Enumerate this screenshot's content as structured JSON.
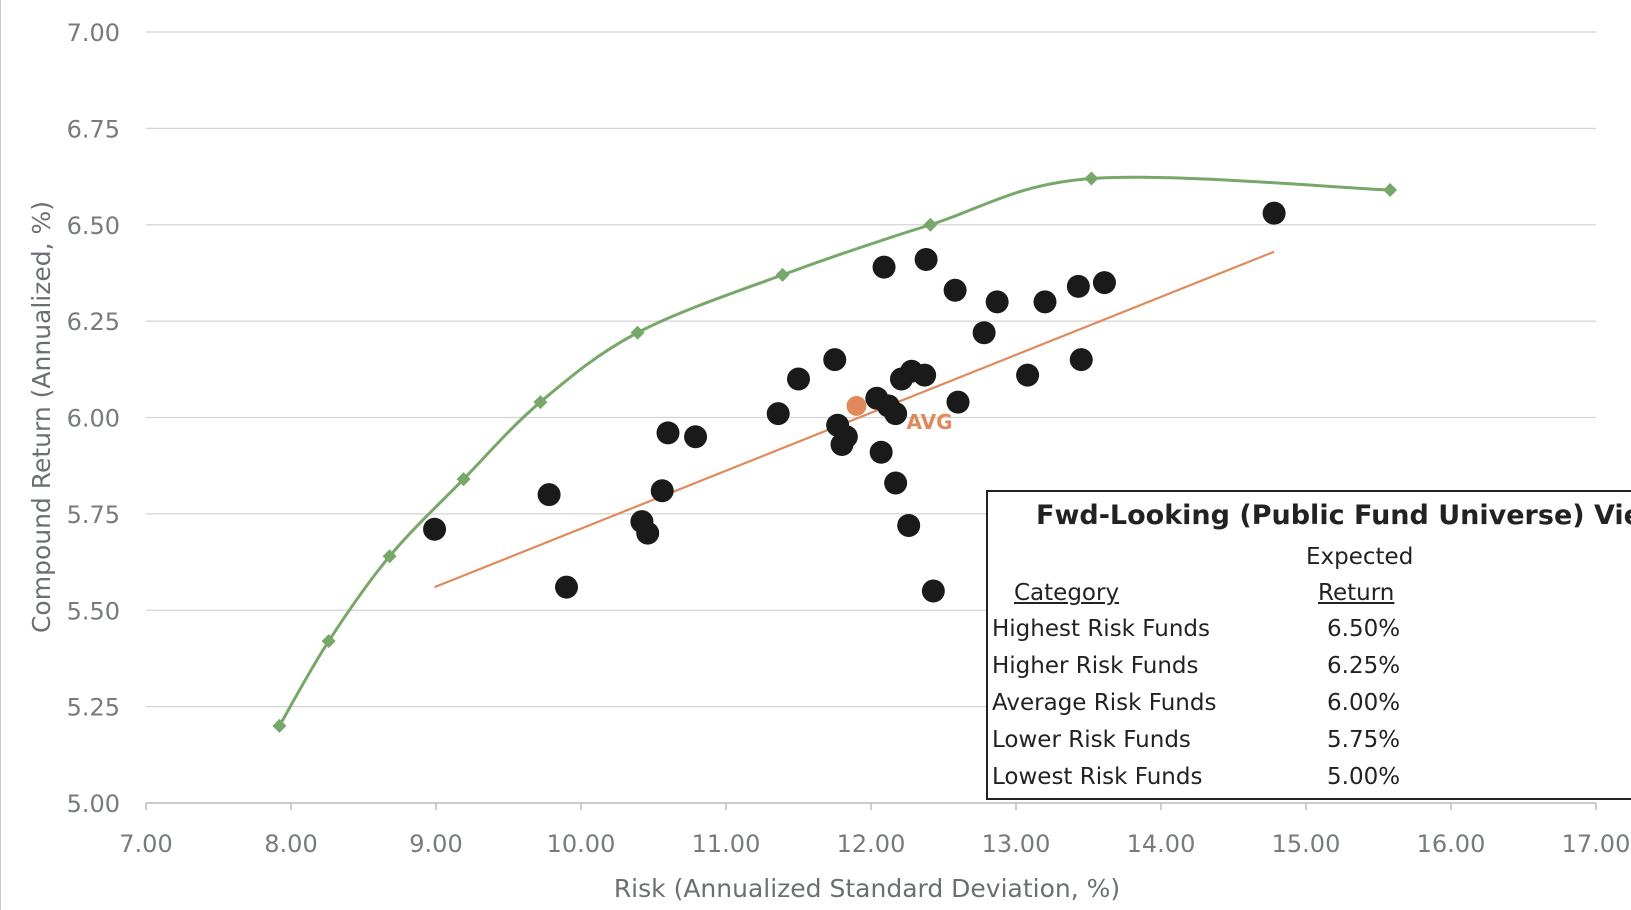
{
  "chart_data": {
    "type": "scatter",
    "title": "",
    "xlabel": "Risk (Annualized Standard Deviation, %)",
    "ylabel": "Compound Return (Annualized, %)",
    "xlim": [
      7.0,
      17.0
    ],
    "ylim": [
      5.0,
      7.0
    ],
    "x_ticks": [
      "7.00",
      "8.00",
      "9.00",
      "10.00",
      "11.00",
      "12.00",
      "13.00",
      "14.00",
      "15.00",
      "16.00",
      "17.00"
    ],
    "y_ticks": [
      "5.00",
      "5.25",
      "5.50",
      "5.75",
      "6.00",
      "6.25",
      "6.50",
      "6.75",
      "7.00"
    ],
    "grid": "horizontal",
    "colors": {
      "frontier": "#77a86a",
      "trend": "#e08a5c",
      "funds": "#1a1a1a",
      "avg": "#e08a5c",
      "grid": "#d4d4d4",
      "tick": "#777b80"
    },
    "series": [
      {
        "type": "line",
        "x": [
          7.92,
          8.26,
          8.68,
          9.19,
          9.72,
          10.39,
          11.39,
          12.41,
          13.52,
          15.58
        ],
        "y": [
          5.2,
          5.42,
          5.64,
          5.84,
          6.04,
          6.22,
          6.37,
          6.5,
          6.62,
          6.59
        ]
      },
      {
        "type": "line",
        "x": [
          8.99,
          14.78
        ],
        "y": [
          5.56,
          6.43
        ]
      },
      {
        "type": "scatter",
        "points": [
          [
            8.99,
            5.71
          ],
          [
            9.78,
            5.8
          ],
          [
            9.9,
            5.56
          ],
          [
            10.42,
            5.73
          ],
          [
            10.46,
            5.7
          ],
          [
            10.56,
            5.81
          ],
          [
            10.6,
            5.96
          ],
          [
            10.79,
            5.95
          ],
          [
            11.36,
            6.01
          ],
          [
            11.5,
            6.1
          ],
          [
            11.75,
            6.15
          ],
          [
            11.77,
            5.98
          ],
          [
            11.8,
            5.93
          ],
          [
            11.83,
            5.95
          ],
          [
            12.04,
            6.05
          ],
          [
            12.07,
            5.91
          ],
          [
            12.09,
            6.39
          ],
          [
            12.12,
            6.03
          ],
          [
            12.17,
            6.01
          ],
          [
            12.17,
            5.83
          ],
          [
            12.21,
            6.1
          ],
          [
            12.26,
            5.72
          ],
          [
            12.28,
            6.12
          ],
          [
            12.37,
            6.11
          ],
          [
            12.38,
            6.41
          ],
          [
            12.43,
            5.55
          ],
          [
            12.58,
            6.33
          ],
          [
            12.6,
            6.04
          ],
          [
            12.78,
            6.22
          ],
          [
            12.87,
            6.3
          ],
          [
            13.08,
            6.11
          ],
          [
            13.2,
            6.3
          ],
          [
            13.43,
            6.34
          ],
          [
            13.45,
            6.15
          ],
          [
            13.61,
            6.35
          ],
          [
            14.78,
            6.53
          ]
        ]
      },
      {
        "type": "scatter",
        "points": [
          [
            11.9,
            6.03
          ]
        ],
        "label": "AVG"
      }
    ],
    "table": {
      "title": "Fwd-Looking (Public Fund Universe) View",
      "header_category": "Category",
      "header_expected": "Expected",
      "header_return": "Return",
      "rows": [
        {
          "category": "Highest Risk Funds",
          "return": "6.50%"
        },
        {
          "category": "Higher Risk Funds",
          "return": "6.25%"
        },
        {
          "category": "Average Risk Funds",
          "return": "6.00%"
        },
        {
          "category": "Lower Risk Funds",
          "return": "5.75%"
        },
        {
          "category": "Lowest Risk Funds",
          "return": "5.00%"
        }
      ]
    }
  }
}
